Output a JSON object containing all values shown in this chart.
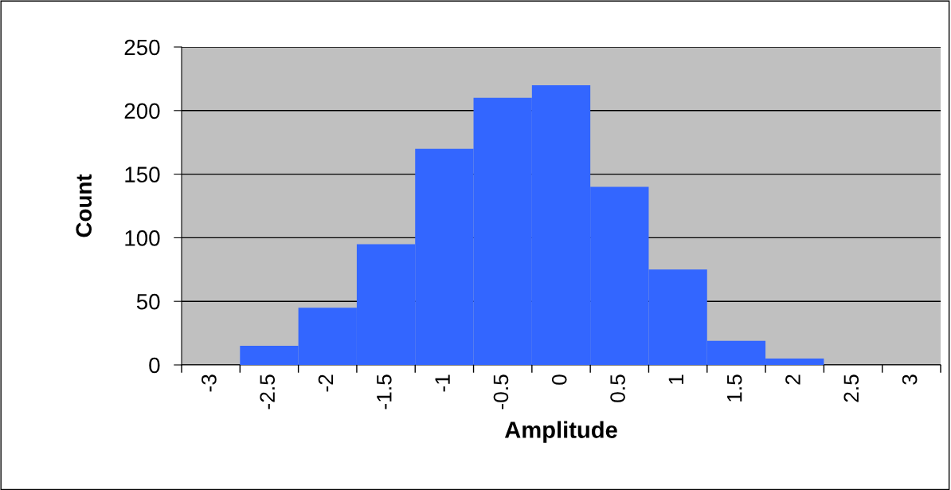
{
  "chart_data": {
    "type": "bar",
    "xlabel": "Amplitude",
    "ylabel": "Count",
    "categories": [
      "-3",
      "-2.5",
      "-2",
      "-1.5",
      "-1",
      "-0.5",
      "0",
      "0.5",
      "1",
      "1.5",
      "2",
      "2.5",
      "3"
    ],
    "values": [
      0,
      15,
      45,
      95,
      170,
      210,
      220,
      140,
      75,
      19,
      5,
      0,
      0
    ],
    "color": "#3366ff",
    "ylim": [
      0,
      250
    ],
    "yticks": [
      0,
      50,
      100,
      150,
      200,
      250
    ],
    "grid": "y"
  }
}
